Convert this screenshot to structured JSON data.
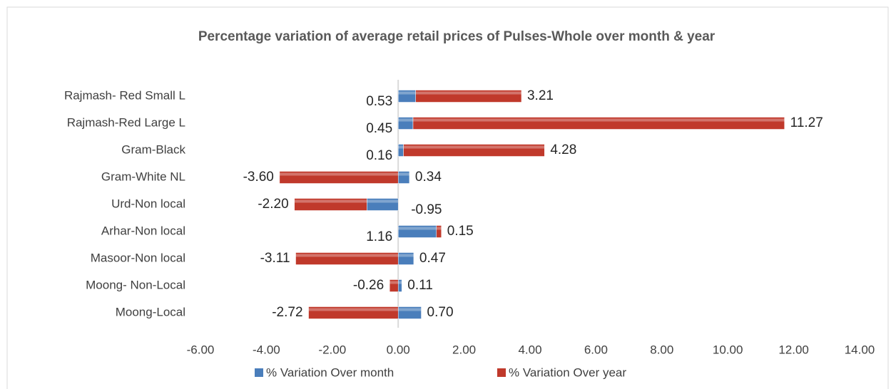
{
  "chart_data": {
    "type": "stacked_bar_horizontal",
    "title": "Percentage variation of average retail prices of Pulses-Whole over month & year",
    "categories": [
      "Rajmash- Red Small L",
      "Rajmash-Red Large L",
      "Gram-Black",
      "Gram-White NL",
      "Urd-Non local",
      "Arhar-Non local",
      "Masoor-Non local",
      "Moong- Non-Local",
      "Moong-Local"
    ],
    "series": [
      {
        "name": "% Variation Over month",
        "color": "#4a7ebb",
        "values": [
          0.53,
          0.45,
          0.16,
          0.34,
          -0.95,
          1.16,
          0.47,
          0.11,
          0.7
        ],
        "value_labels": [
          "0.53",
          "0.45",
          "0.16",
          "0.34",
          "-0.95",
          "1.16",
          "0.47",
          "0.11",
          "0.70"
        ]
      },
      {
        "name": "% Variation Over year",
        "color": "#c0392b",
        "values": [
          3.21,
          11.27,
          4.28,
          -3.6,
          -2.2,
          0.15,
          -3.11,
          -0.26,
          -2.72
        ],
        "value_labels": [
          "3.21",
          "11.27",
          "4.28",
          "-3.60",
          "-2.20",
          "0.15",
          "-3.11",
          "-0.26",
          "-2.72"
        ]
      }
    ],
    "xlim": [
      -6,
      14
    ],
    "xticks": [
      {
        "value": -6,
        "label": "-6.00"
      },
      {
        "value": -4,
        "label": "-4.00"
      },
      {
        "value": -2,
        "label": "-2.00"
      },
      {
        "value": 0,
        "label": "0.00"
      },
      {
        "value": 2,
        "label": "2.00"
      },
      {
        "value": 4,
        "label": "4.00"
      },
      {
        "value": 6,
        "label": "6.00"
      },
      {
        "value": 8,
        "label": "8.00"
      },
      {
        "value": 10,
        "label": "10.00"
      },
      {
        "value": 12,
        "label": "12.00"
      },
      {
        "value": 14,
        "label": "14.00"
      }
    ],
    "legend": "bottom"
  }
}
